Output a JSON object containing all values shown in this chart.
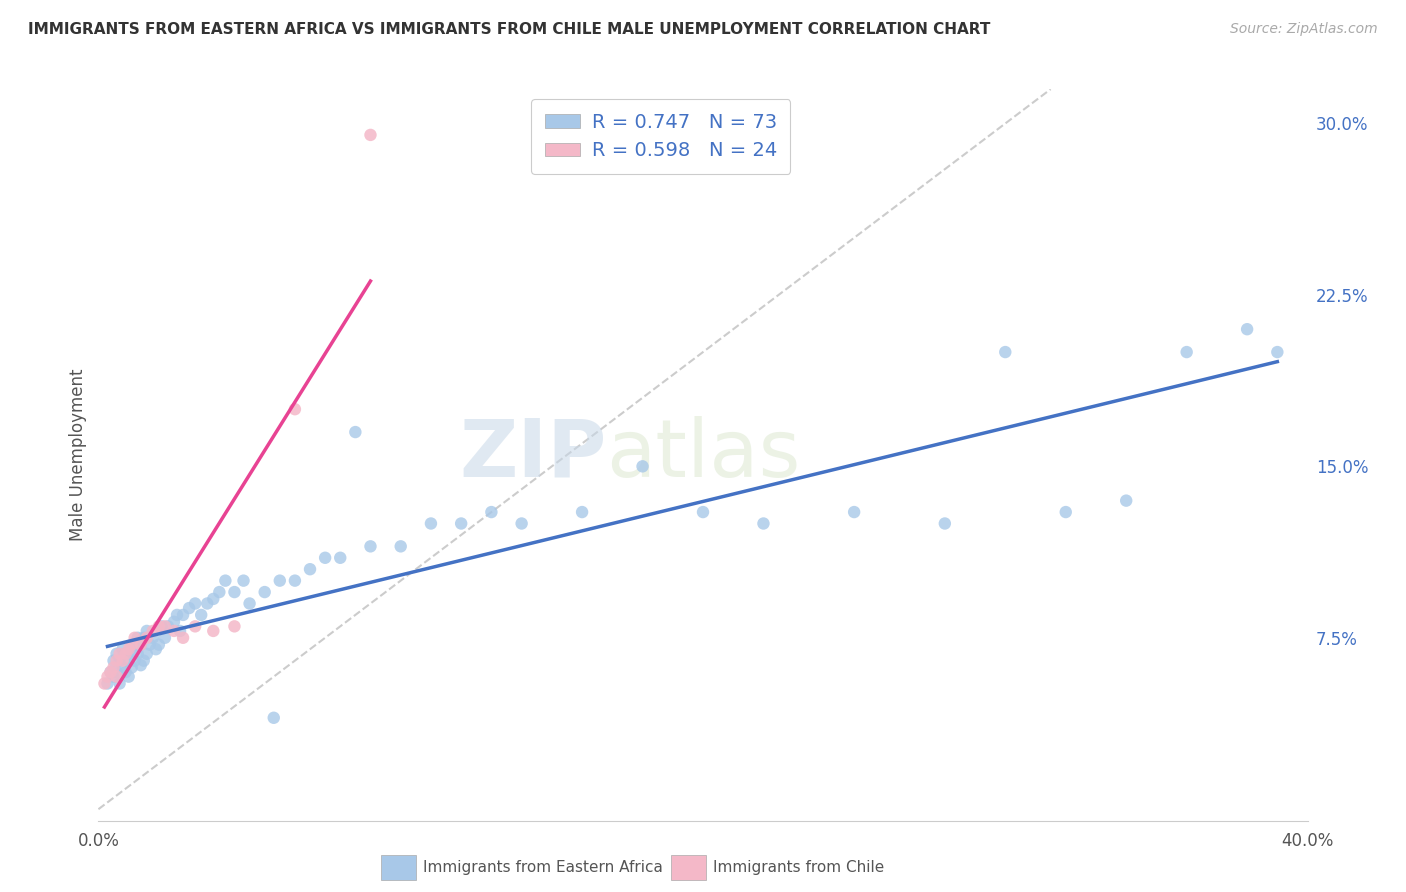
{
  "title": "IMMIGRANTS FROM EASTERN AFRICA VS IMMIGRANTS FROM CHILE MALE UNEMPLOYMENT CORRELATION CHART",
  "source": "Source: ZipAtlas.com",
  "ylabel": "Male Unemployment",
  "ytick_labels": [
    "7.5%",
    "15.0%",
    "22.5%",
    "30.0%"
  ],
  "ytick_values": [
    0.075,
    0.15,
    0.225,
    0.3
  ],
  "xlim": [
    0.0,
    0.4
  ],
  "ylim": [
    -0.005,
    0.315
  ],
  "watermark_part1": "ZIP",
  "watermark_part2": "atlas",
  "series1_name": "Immigrants from Eastern Africa",
  "series2_name": "Immigrants from Chile",
  "series1_color": "#a8c8e8",
  "series2_color": "#f4b8c8",
  "series1_R": 0.747,
  "series1_N": 73,
  "series2_R": 0.598,
  "series2_N": 24,
  "trendline1_color": "#4472c4",
  "trendline2_color": "#e84393",
  "diagonal_line_color": "#cccccc",
  "background_color": "#ffffff",
  "grid_color": "#dddddd",
  "ytick_color": "#4472c4",
  "xtick_color": "#555555",
  "series1_x": [
    0.003,
    0.004,
    0.005,
    0.005,
    0.006,
    0.006,
    0.007,
    0.007,
    0.008,
    0.008,
    0.009,
    0.009,
    0.01,
    0.01,
    0.011,
    0.011,
    0.012,
    0.012,
    0.013,
    0.013,
    0.014,
    0.014,
    0.015,
    0.015,
    0.016,
    0.016,
    0.017,
    0.018,
    0.019,
    0.02,
    0.021,
    0.022,
    0.023,
    0.025,
    0.026,
    0.027,
    0.028,
    0.03,
    0.032,
    0.034,
    0.036,
    0.038,
    0.04,
    0.042,
    0.045,
    0.048,
    0.05,
    0.055,
    0.058,
    0.06,
    0.065,
    0.07,
    0.075,
    0.08,
    0.085,
    0.09,
    0.1,
    0.11,
    0.12,
    0.13,
    0.14,
    0.16,
    0.18,
    0.2,
    0.22,
    0.25,
    0.28,
    0.3,
    0.32,
    0.34,
    0.36,
    0.38,
    0.39
  ],
  "series1_y": [
    0.055,
    0.06,
    0.058,
    0.065,
    0.06,
    0.068,
    0.055,
    0.065,
    0.062,
    0.07,
    0.06,
    0.068,
    0.058,
    0.065,
    0.062,
    0.07,
    0.065,
    0.072,
    0.068,
    0.075,
    0.063,
    0.072,
    0.065,
    0.075,
    0.068,
    0.078,
    0.072,
    0.075,
    0.07,
    0.072,
    0.08,
    0.075,
    0.08,
    0.082,
    0.085,
    0.078,
    0.085,
    0.088,
    0.09,
    0.085,
    0.09,
    0.092,
    0.095,
    0.1,
    0.095,
    0.1,
    0.09,
    0.095,
    0.04,
    0.1,
    0.1,
    0.105,
    0.11,
    0.11,
    0.165,
    0.115,
    0.115,
    0.125,
    0.125,
    0.13,
    0.125,
    0.13,
    0.15,
    0.13,
    0.125,
    0.13,
    0.125,
    0.2,
    0.13,
    0.135,
    0.2,
    0.21,
    0.2
  ],
  "series2_x": [
    0.002,
    0.003,
    0.004,
    0.005,
    0.006,
    0.006,
    0.007,
    0.008,
    0.009,
    0.01,
    0.011,
    0.012,
    0.014,
    0.016,
    0.018,
    0.02,
    0.022,
    0.025,
    0.028,
    0.032,
    0.038,
    0.045,
    0.065,
    0.09
  ],
  "series2_y": [
    0.055,
    0.058,
    0.06,
    0.062,
    0.058,
    0.065,
    0.068,
    0.065,
    0.068,
    0.07,
    0.072,
    0.075,
    0.072,
    0.075,
    0.078,
    0.08,
    0.08,
    0.078,
    0.075,
    0.08,
    0.078,
    0.08,
    0.175,
    0.295
  ]
}
